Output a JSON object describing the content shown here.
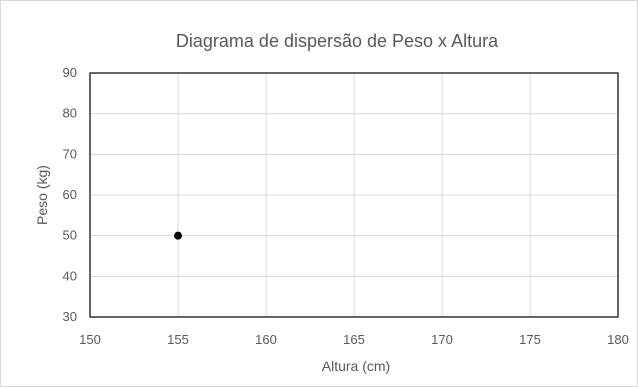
{
  "chart_data": {
    "type": "scatter",
    "title": "Diagrama de dispersão de Peso x Altura",
    "xlabel": "Altura (cm)",
    "ylabel": "Peso (kg)",
    "xlim": [
      150,
      180
    ],
    "ylim": [
      30,
      90
    ],
    "xticks": [
      150,
      155,
      160,
      165,
      170,
      175,
      180
    ],
    "yticks": [
      30,
      40,
      50,
      60,
      70,
      80,
      90
    ],
    "grid": true,
    "series": [
      {
        "points": [
          {
            "x": 155,
            "y": 50
          }
        ],
        "color": "#000000"
      }
    ]
  }
}
